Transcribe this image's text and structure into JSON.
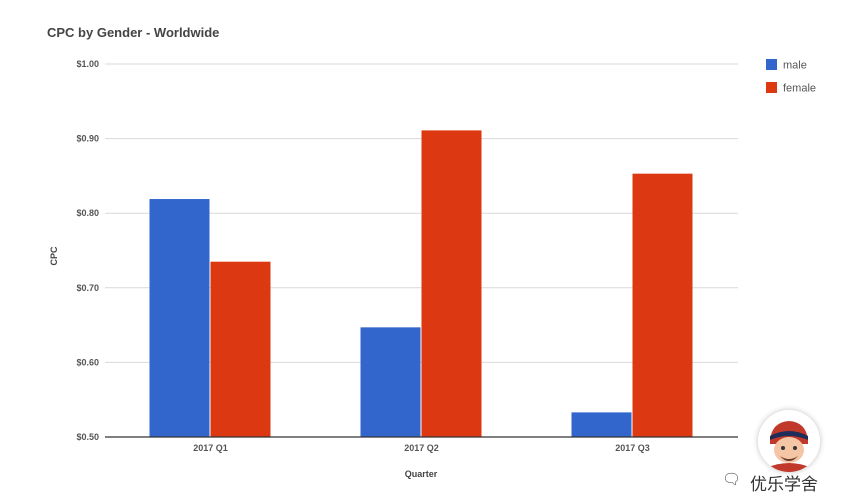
{
  "chart_data": {
    "type": "bar",
    "title": "CPC by Gender - Worldwide",
    "xlabel": "Quarter",
    "ylabel": "CPC",
    "categories": [
      "2017 Q1",
      "2017 Q2",
      "2017 Q3"
    ],
    "series": [
      {
        "name": "male",
        "color": "#3366cc",
        "values": [
          0.819,
          0.647,
          0.533
        ]
      },
      {
        "name": "female",
        "color": "#dc3912",
        "values": [
          0.735,
          0.911,
          0.853
        ]
      }
    ],
    "ylim": [
      0.5,
      1.0
    ],
    "yticks": [
      {
        "value": 0.5,
        "label": "$0.50"
      },
      {
        "value": 0.6,
        "label": "$0.60"
      },
      {
        "value": 0.7,
        "label": "$0.70"
      },
      {
        "value": 0.8,
        "label": "$0.80"
      },
      {
        "value": 0.9,
        "label": "$0.90"
      },
      {
        "value": 1.0,
        "label": "$1.00"
      }
    ],
    "grid": true,
    "legend": "right"
  },
  "watermark": {
    "text": "优乐学舍",
    "wechat_icon": "wechat-icon"
  }
}
